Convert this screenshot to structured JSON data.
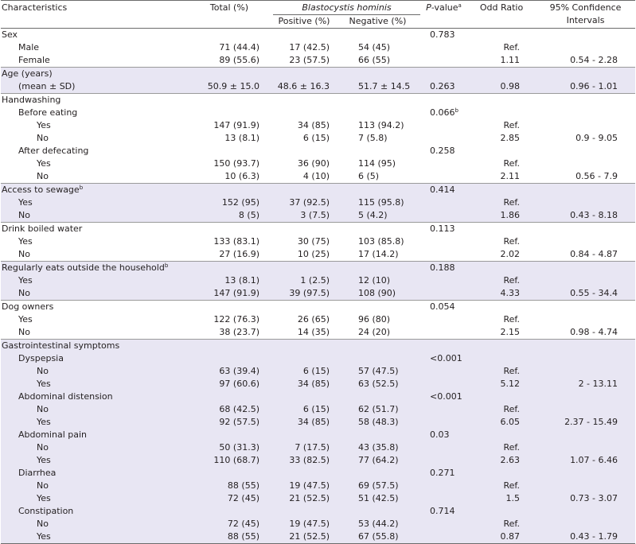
{
  "header": {
    "characteristics": "Characteristics",
    "total": "Total (%)",
    "blastocystis": "Blastocystis hominis",
    "positive": "Positive (%)",
    "negative": "Negative (%)",
    "p_value": "P",
    "p_value_rest": "-value",
    "p_value_sup": "a",
    "odd_ratio": "Odd Ratio",
    "ci_line1": "95% Confidence",
    "ci_line2": "Intervals"
  },
  "rows": [
    {
      "label": "Sex",
      "level": 0,
      "group_start": true,
      "shade": false,
      "total": "",
      "positive": "",
      "negative": "",
      "p": "0.783",
      "p_sup": "",
      "or": "",
      "ci": ""
    },
    {
      "label": "Male",
      "level": 1,
      "shade": false,
      "total": "71 (44.4)",
      "positive": "17 (42.5)",
      "negative": "54 (45)",
      "p": "",
      "p_sup": "",
      "or": "Ref.",
      "ci": ""
    },
    {
      "label": "Female",
      "level": 1,
      "shade": false,
      "total": "89 (55.6)",
      "positive": "23 (57.5)",
      "negative": "66 (55)",
      "p": "",
      "p_sup": "",
      "or": "1.11",
      "ci": "0.54 - 2.28"
    },
    {
      "label": "Age (years)",
      "level": 0,
      "group_start": true,
      "shade": true,
      "total": "",
      "positive": "",
      "negative": "",
      "p": "",
      "p_sup": "",
      "or": "",
      "ci": ""
    },
    {
      "label": "(mean ± SD)",
      "level": 1,
      "shade": true,
      "total": "50.9 ± 15.0",
      "positive": "48.6 ± 16.3",
      "negative": "51.7 ± 14.5",
      "p": "0.263",
      "p_sup": "",
      "or": "0.98",
      "ci": "0.96 - 1.01"
    },
    {
      "label": "Handwashing",
      "level": 0,
      "group_start": true,
      "shade": false,
      "total": "",
      "positive": "",
      "negative": "",
      "p": "",
      "p_sup": "",
      "or": "",
      "ci": ""
    },
    {
      "label": "Before eating",
      "level": 1,
      "shade": false,
      "total": "",
      "positive": "",
      "negative": "",
      "p": "0.066",
      "p_sup": "b",
      "or": "",
      "ci": ""
    },
    {
      "label": "Yes",
      "level": 2,
      "shade": false,
      "total": "147 (91.9)",
      "positive": "34 (85)",
      "negative": "113 (94.2)",
      "p": "",
      "p_sup": "",
      "or": "Ref.",
      "ci": ""
    },
    {
      "label": "No",
      "level": 2,
      "shade": false,
      "total": "13 (8.1)",
      "positive": "6 (15)",
      "negative": "7 (5.8)",
      "p": "",
      "p_sup": "",
      "or": "2.85",
      "ci": "0.9 - 9.05"
    },
    {
      "label": "After defecating",
      "level": 1,
      "shade": false,
      "total": "",
      "positive": "",
      "negative": "",
      "p": "0.258",
      "p_sup": "",
      "or": "",
      "ci": ""
    },
    {
      "label": "Yes",
      "level": 2,
      "shade": false,
      "total": "150 (93.7)",
      "positive": "36 (90)",
      "negative": "114 (95)",
      "p": "",
      "p_sup": "",
      "or": "Ref.",
      "ci": ""
    },
    {
      "label": "No",
      "level": 2,
      "shade": false,
      "total": "10 (6.3)",
      "positive": "4 (10)",
      "negative": "6 (5)",
      "p": "",
      "p_sup": "",
      "or": "2.11",
      "ci": "0.56 - 7.9"
    },
    {
      "label": "Access to sewage",
      "label_sup": "b",
      "level": 0,
      "group_start": true,
      "shade": true,
      "total": "",
      "positive": "",
      "negative": "",
      "p": "0.414",
      "p_sup": "",
      "or": "",
      "ci": ""
    },
    {
      "label": "Yes",
      "level": 1,
      "shade": true,
      "total": "152 (95)",
      "positive": "37 (92.5)",
      "negative": "115 (95.8)",
      "p": "",
      "p_sup": "",
      "or": "Ref.",
      "ci": ""
    },
    {
      "label": "No",
      "level": 1,
      "shade": true,
      "total": "8 (5)",
      "positive": "3 (7.5)",
      "negative": "5 (4.2)",
      "p": "",
      "p_sup": "",
      "or": "1.86",
      "ci": "0.43 - 8.18"
    },
    {
      "label": "Drink boiled water",
      "level": 0,
      "group_start": true,
      "shade": false,
      "total": "",
      "positive": "",
      "negative": "",
      "p": "0.113",
      "p_sup": "",
      "or": "",
      "ci": ""
    },
    {
      "label": "Yes",
      "level": 1,
      "shade": false,
      "total": "133 (83.1)",
      "positive": "30 (75)",
      "negative": "103 (85.8)",
      "p": "",
      "p_sup": "",
      "or": "Ref.",
      "ci": ""
    },
    {
      "label": "No",
      "level": 1,
      "shade": false,
      "total": "27 (16.9)",
      "positive": "10 (25)",
      "negative": "17 (14.2)",
      "p": "",
      "p_sup": "",
      "or": "2.02",
      "ci": "0.84 - 4.87"
    },
    {
      "label": "Regularly eats outside the household",
      "label_sup": "b",
      "level": 0,
      "group_start": true,
      "shade": true,
      "total": "",
      "positive": "",
      "negative": "",
      "p": "0.188",
      "p_sup": "",
      "or": "",
      "ci": ""
    },
    {
      "label": "Yes",
      "level": 1,
      "shade": true,
      "total": "13 (8.1)",
      "positive": "1 (2.5)",
      "negative": "12 (10)",
      "p": "",
      "p_sup": "",
      "or": "Ref.",
      "ci": ""
    },
    {
      "label": "No",
      "level": 1,
      "shade": true,
      "total": "147 (91.9)",
      "positive": "39 (97.5)",
      "negative": "108 (90)",
      "p": "",
      "p_sup": "",
      "or": "4.33",
      "ci": "0.55 - 34.4"
    },
    {
      "label": "Dog owners",
      "level": 0,
      "group_start": true,
      "shade": false,
      "total": "",
      "positive": "",
      "negative": "",
      "p": "0.054",
      "p_sup": "",
      "or": "",
      "ci": ""
    },
    {
      "label": "Yes",
      "level": 1,
      "shade": false,
      "total": "122 (76.3)",
      "positive": "26 (65)",
      "negative": "96 (80)",
      "p": "",
      "p_sup": "",
      "or": "Ref.",
      "ci": ""
    },
    {
      "label": "No",
      "level": 1,
      "shade": false,
      "total": "38 (23.7)",
      "positive": "14 (35)",
      "negative": "24 (20)",
      "p": "",
      "p_sup": "",
      "or": "2.15",
      "ci": "0.98 - 4.74"
    },
    {
      "label": "Gastrointestinal symptoms",
      "level": 0,
      "group_start": true,
      "shade": true,
      "total": "",
      "positive": "",
      "negative": "",
      "p": "",
      "p_sup": "",
      "or": "",
      "ci": ""
    },
    {
      "label": "Dyspepsia",
      "level": 1,
      "shade": true,
      "total": "",
      "positive": "",
      "negative": "",
      "p": "<0.001",
      "p_sup": "",
      "or": "",
      "ci": ""
    },
    {
      "label": "No",
      "level": 2,
      "shade": true,
      "total": "63 (39.4)",
      "positive": "6 (15)",
      "negative": "57 (47.5)",
      "p": "",
      "p_sup": "",
      "or": "Ref.",
      "ci": ""
    },
    {
      "label": "Yes",
      "level": 2,
      "shade": true,
      "total": "97 (60.6)",
      "positive": "34 (85)",
      "negative": "63 (52.5)",
      "p": "",
      "p_sup": "",
      "or": "5.12",
      "ci": "2 - 13.11"
    },
    {
      "label": "Abdominal distension",
      "level": 1,
      "shade": true,
      "total": "",
      "positive": "",
      "negative": "",
      "p": "<0.001",
      "p_sup": "",
      "or": "",
      "ci": ""
    },
    {
      "label": "No",
      "level": 2,
      "shade": true,
      "total": "68 (42.5)",
      "positive": "6 (15)",
      "negative": "62 (51.7)",
      "p": "",
      "p_sup": "",
      "or": "Ref.",
      "ci": ""
    },
    {
      "label": "Yes",
      "level": 2,
      "shade": true,
      "total": "92 (57.5)",
      "positive": "34 (85)",
      "negative": "58 (48.3)",
      "p": "",
      "p_sup": "",
      "or": "6.05",
      "ci": "2.37 - 15.49"
    },
    {
      "label": "Abdominal pain",
      "level": 1,
      "shade": true,
      "total": "",
      "positive": "",
      "negative": "",
      "p": "0.03",
      "p_sup": "",
      "or": "",
      "ci": ""
    },
    {
      "label": "No",
      "level": 2,
      "shade": true,
      "total": "50 (31.3)",
      "positive": "7 (17.5)",
      "negative": "43 (35.8)",
      "p": "",
      "p_sup": "",
      "or": "Ref.",
      "ci": ""
    },
    {
      "label": "Yes",
      "level": 2,
      "shade": true,
      "total": "110 (68.7)",
      "positive": "33 (82.5)",
      "negative": "77 (64.2)",
      "p": "",
      "p_sup": "",
      "or": "2.63",
      "ci": "1.07 - 6.46"
    },
    {
      "label": "Diarrhea",
      "level": 1,
      "shade": true,
      "total": "",
      "positive": "",
      "negative": "",
      "p": "0.271",
      "p_sup": "",
      "or": "",
      "ci": ""
    },
    {
      "label": "No",
      "level": 2,
      "shade": true,
      "total": "88 (55)",
      "positive": "19 (47.5)",
      "negative": "69 (57.5)",
      "p": "",
      "p_sup": "",
      "or": "Ref.",
      "ci": ""
    },
    {
      "label": "Yes",
      "level": 2,
      "shade": true,
      "total": "72 (45)",
      "positive": "21 (52.5)",
      "negative": "51 (42.5)",
      "p": "",
      "p_sup": "",
      "or": "1.5",
      "ci": "0.73 - 3.07"
    },
    {
      "label": "Constipation",
      "level": 1,
      "shade": true,
      "total": "",
      "positive": "",
      "negative": "",
      "p": "0.714",
      "p_sup": "",
      "or": "",
      "ci": ""
    },
    {
      "label": "No",
      "level": 2,
      "shade": true,
      "total": "72 (45)",
      "positive": "19 (47.5)",
      "negative": "53 (44.2)",
      "p": "",
      "p_sup": "",
      "or": "Ref.",
      "ci": ""
    },
    {
      "label": "Yes",
      "level": 2,
      "shade": true,
      "total": "88 (55)",
      "positive": "21 (52.5)",
      "negative": "67 (55.8)",
      "p": "",
      "p_sup": "",
      "or": "0.87",
      "ci": "0.43 - 1.79"
    }
  ]
}
